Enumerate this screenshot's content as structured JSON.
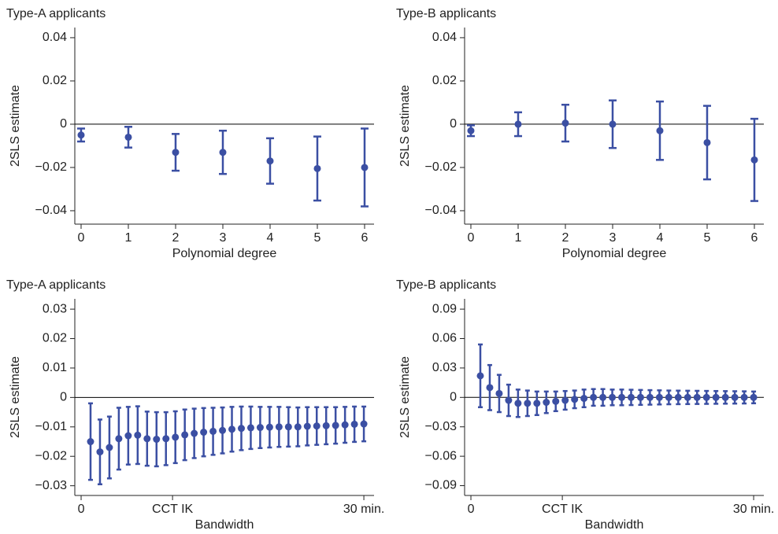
{
  "chart_data": [
    {
      "type": "errorbar",
      "title": "Type-A applicants",
      "xlabel": "Polynomial degree",
      "ylabel": "2SLS estimate",
      "color": "#3b4fa3",
      "refline": 0,
      "x": [
        0,
        1,
        2,
        3,
        4,
        5,
        6
      ],
      "values": [
        -0.005,
        -0.006,
        -0.013,
        -0.013,
        -0.017,
        -0.0205,
        -0.02
      ],
      "errors": [
        0.003,
        0.0048,
        0.0085,
        0.01,
        0.0105,
        0.0148,
        0.018
      ],
      "xlim": [
        -0.133,
        6.2
      ],
      "xticks": [
        0,
        1,
        2,
        3,
        4,
        5,
        6
      ],
      "ylim": [
        -0.0462,
        0.0447
      ],
      "yticks": [
        {
          "value": -0.04,
          "label": "−0.04"
        },
        {
          "value": -0.02,
          "label": "−0.02"
        },
        0,
        0.02,
        0.04
      ]
    },
    {
      "type": "errorbar",
      "title": "Type-B applicants",
      "xlabel": "Polynomial degree",
      "ylabel": "2SLS estimate",
      "color": "#3b4fa3",
      "refline": 0,
      "x": [
        0,
        1,
        2,
        3,
        4,
        5,
        6
      ],
      "values": [
        -0.003,
        0,
        0.0005,
        0,
        -0.003,
        -0.0085,
        -0.0165
      ],
      "errors": [
        0.0025,
        0.0055,
        0.0085,
        0.011,
        0.0135,
        0.017,
        0.019
      ],
      "xlim": [
        -0.133,
        6.2
      ],
      "xticks": [
        0,
        1,
        2,
        3,
        4,
        5,
        6
      ],
      "ylim": [
        -0.0462,
        0.0447
      ],
      "yticks": [
        {
          "value": -0.04,
          "label": "−0.04"
        },
        {
          "value": -0.02,
          "label": "−0.02"
        },
        0,
        0.02,
        0.04
      ]
    },
    {
      "type": "errorbar",
      "title": "Type-A applicants",
      "xlabel": "Bandwidth",
      "ylabel": "2SLS estimate",
      "color": "#3b4fa3",
      "refline": 0,
      "x": [
        1,
        2,
        3,
        4,
        5,
        6,
        7,
        8,
        9,
        10,
        11,
        12,
        13,
        14,
        15,
        16,
        17,
        18,
        19,
        20,
        21,
        22,
        23,
        24,
        25,
        26,
        27,
        28,
        29,
        30
      ],
      "values": [
        -0.015,
        -0.0185,
        -0.017,
        -0.014,
        -0.013,
        -0.0128,
        -0.014,
        -0.0142,
        -0.014,
        -0.0135,
        -0.0127,
        -0.0122,
        -0.0118,
        -0.0115,
        -0.0112,
        -0.0108,
        -0.0105,
        -0.0103,
        -0.0102,
        -0.0101,
        -0.01,
        -0.01,
        -0.01,
        -0.0098,
        -0.0097,
        -0.0096,
        -0.0095,
        -0.0093,
        -0.0091,
        -0.009
      ],
      "errors": [
        0.013,
        0.011,
        0.0105,
        0.0105,
        0.0098,
        0.0098,
        0.0092,
        0.0092,
        0.009,
        0.0088,
        0.0086,
        0.0084,
        0.0082,
        0.008,
        0.0078,
        0.0076,
        0.0074,
        0.0072,
        0.007,
        0.0069,
        0.0068,
        0.0067,
        0.0066,
        0.0065,
        0.0064,
        0.0063,
        0.0062,
        0.0061,
        0.006,
        0.0059
      ],
      "xlim": [
        -0.67,
        31.08
      ],
      "xticks": [
        0,
        {
          "value": 9.7,
          "label": "CCT IK"
        },
        {
          "value": 30,
          "label": "30 min."
        }
      ],
      "ylim": [
        -0.0333,
        0.0335
      ],
      "yticks": [
        {
          "value": -0.03,
          "label": "−0.03"
        },
        {
          "value": -0.02,
          "label": "−0.02"
        },
        {
          "value": -0.01,
          "label": "−0.01"
        },
        0,
        0.01,
        0.02,
        0.03
      ]
    },
    {
      "type": "errorbar",
      "title": "Type-B applicants",
      "xlabel": "Bandwidth",
      "ylabel": "2SLS estimate",
      "color": "#3b4fa3",
      "refline": 0,
      "x": [
        1,
        2,
        3,
        4,
        5,
        6,
        7,
        8,
        9,
        10,
        11,
        12,
        13,
        14,
        15,
        16,
        17,
        18,
        19,
        20,
        21,
        22,
        23,
        24,
        25,
        26,
        27,
        28,
        29,
        30
      ],
      "values": [
        0.022,
        0.01,
        0.004,
        -0.003,
        -0.006,
        -0.006,
        -0.006,
        -0.005,
        -0.004,
        -0.003,
        -0.002,
        -0.001,
        0,
        0,
        0,
        0,
        0,
        0,
        0,
        0,
        0,
        0,
        0,
        0,
        0,
        0,
        0,
        0,
        0,
        0
      ],
      "errors": [
        0.032,
        0.023,
        0.019,
        0.016,
        0.014,
        0.013,
        0.012,
        0.011,
        0.01,
        0.0095,
        0.009,
        0.009,
        0.0085,
        0.0085,
        0.008,
        0.008,
        0.0078,
        0.0076,
        0.0074,
        0.0072,
        0.007,
        0.0069,
        0.0068,
        0.0067,
        0.0066,
        0.0065,
        0.0064,
        0.0063,
        0.0062,
        0.006
      ],
      "xlim": [
        -0.67,
        31.08
      ],
      "xticks": [
        0,
        {
          "value": 9.7,
          "label": "CCT IK"
        },
        {
          "value": 30,
          "label": "30 min."
        }
      ],
      "ylim": [
        -0.1,
        0.1005
      ],
      "yticks": [
        {
          "value": -0.09,
          "label": "−0.09"
        },
        {
          "value": -0.06,
          "label": "−0.06"
        },
        {
          "value": -0.03,
          "label": "−0.03"
        },
        0,
        0.03,
        0.06,
        0.09
      ]
    }
  ]
}
